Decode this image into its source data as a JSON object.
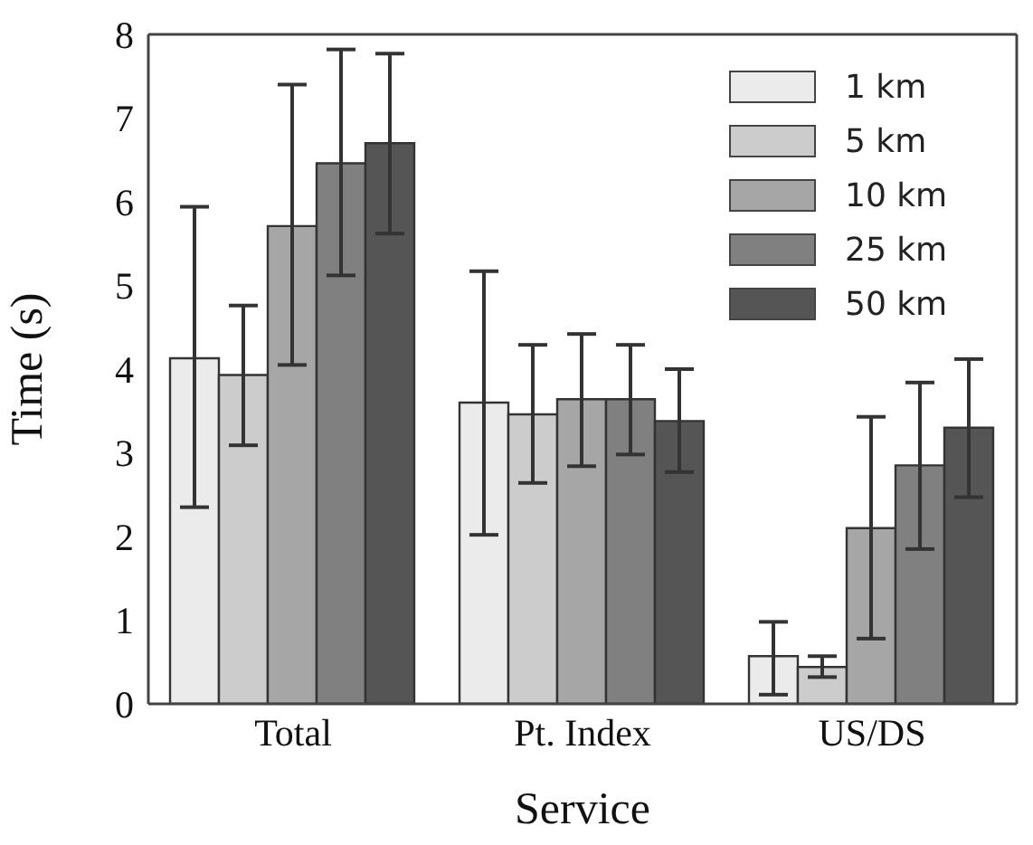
{
  "chart_data": {
    "type": "bar",
    "xlabel": "Service",
    "ylabel": "Time (s)",
    "categories": [
      "Total",
      "Pt. Index",
      "US/DS"
    ],
    "series": [
      {
        "name": "1 km",
        "color": "#ebebeb",
        "values": [
          4.13,
          3.6,
          0.57
        ],
        "errors": [
          [
            2.35,
            5.94
          ],
          [
            2.02,
            5.17
          ],
          [
            0.11,
            0.98
          ]
        ]
      },
      {
        "name": "5 km",
        "color": "#cccccc",
        "values": [
          3.93,
          3.46,
          0.44
        ],
        "errors": [
          [
            3.09,
            4.76
          ],
          [
            2.64,
            4.29
          ],
          [
            0.32,
            0.57
          ]
        ]
      },
      {
        "name": "10 km",
        "color": "#a6a6a6",
        "values": [
          5.71,
          3.64,
          2.1
        ],
        "errors": [
          [
            4.05,
            7.4
          ],
          [
            2.84,
            4.42
          ],
          [
            0.78,
            3.43
          ]
        ]
      },
      {
        "name": "25 km",
        "color": "#808080",
        "values": [
          6.46,
          3.64,
          2.85
        ],
        "errors": [
          [
            5.12,
            7.82
          ],
          [
            2.98,
            4.29
          ],
          [
            1.85,
            3.84
          ]
        ]
      },
      {
        "name": "50 km",
        "color": "#555555",
        "values": [
          6.7,
          3.38,
          3.3
        ],
        "errors": [
          [
            5.62,
            7.77
          ],
          [
            2.77,
            4.0
          ],
          [
            2.47,
            4.12
          ]
        ]
      }
    ],
    "ylim": [
      0,
      8
    ],
    "yticks": [
      0,
      1,
      2,
      3,
      4,
      5,
      6,
      7,
      8
    ],
    "grid": false,
    "legend": "top right"
  }
}
